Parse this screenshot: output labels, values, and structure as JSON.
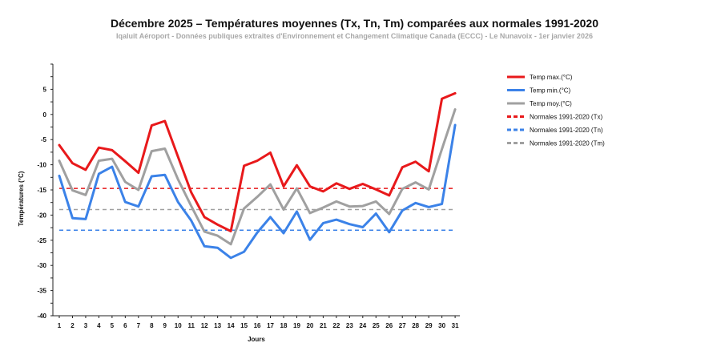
{
  "title": "Décembre 2025 – Températures moyennes (Tx, Tn, Tm) comparées aux normales 1991-2020",
  "subtitle": "Iqaluit Aéroport - Données publiques extraites d'Environnement et Changement Climatique Canada (ECCC) - Le Nunavoix - 1er janvier 2026",
  "chart_data": {
    "type": "line",
    "xlabel": "Jours",
    "ylabel": "Températures (°C)",
    "ylim": [
      -40,
      10
    ],
    "yticks": [
      5,
      0,
      -5,
      -10,
      -15,
      -20,
      -25,
      -30,
      -35,
      -40
    ],
    "x": [
      1,
      2,
      3,
      4,
      5,
      6,
      7,
      8,
      9,
      10,
      11,
      12,
      13,
      14,
      15,
      16,
      17,
      18,
      19,
      20,
      21,
      22,
      23,
      24,
      25,
      26,
      27,
      28,
      29,
      30,
      31
    ],
    "legend_position": "right",
    "series": [
      {
        "name": "Temp max.(°C)",
        "color": "#e8191b",
        "style": "solid",
        "values": [
          -6.1,
          -9.7,
          -11.0,
          -6.6,
          -7.1,
          -9.3,
          -11.6,
          -2.2,
          -1.3,
          -8.4,
          -15.5,
          -20.4,
          -21.9,
          -23.2,
          -10.2,
          -9.2,
          -7.6,
          -14.3,
          -10.1,
          -14.3,
          -15.3,
          -13.7,
          -14.8,
          -13.8,
          -14.9,
          -16.1,
          -10.5,
          -9.4,
          -11.3,
          3.1,
          4.2
        ]
      },
      {
        "name": "Temp min.(°C)",
        "color": "#3b82e8",
        "style": "solid",
        "values": [
          -12.2,
          -20.6,
          -20.8,
          -11.8,
          -10.4,
          -17.4,
          -18.3,
          -12.3,
          -12.0,
          -17.4,
          -21.1,
          -26.2,
          -26.5,
          -28.5,
          -27.3,
          -23.5,
          -20.4,
          -23.6,
          -19.3,
          -24.9,
          -21.6,
          -20.9,
          -21.8,
          -22.4,
          -19.7,
          -23.4,
          -19.1,
          -17.6,
          -18.4,
          -17.8,
          -2.1
        ]
      },
      {
        "name": "Temp moy.(°C)",
        "color": "#a0a0a0",
        "style": "solid",
        "values": [
          -9.2,
          -15.1,
          -16.0,
          -9.2,
          -8.8,
          -13.4,
          -15.0,
          -7.3,
          -6.8,
          -12.9,
          -18.2,
          -23.3,
          -24.1,
          -25.8,
          -18.7,
          -16.4,
          -13.9,
          -18.9,
          -14.7,
          -19.6,
          -18.5,
          -17.3,
          -18.3,
          -18.2,
          -17.3,
          -19.8,
          -14.8,
          -13.5,
          -14.9,
          -6.9,
          1.0
        ]
      },
      {
        "name": "Normales 1991-2020 (Tx)",
        "color": "#e8191b",
        "style": "dashed",
        "values": [
          -14.7,
          -14.7,
          -14.7,
          -14.7,
          -14.7,
          -14.7,
          -14.7,
          -14.7,
          -14.7,
          -14.7,
          -14.7,
          -14.7,
          -14.7,
          -14.7,
          -14.7,
          -14.7,
          -14.7,
          -14.7,
          -14.7,
          -14.7,
          -14.7,
          -14.7,
          -14.7,
          -14.7,
          -14.7,
          -14.7,
          -14.7,
          -14.7,
          -14.7,
          -14.7,
          -14.7
        ]
      },
      {
        "name": "Normales 1991-2020 (Tn)",
        "color": "#3b82e8",
        "style": "dashed",
        "values": [
          -23.0,
          -23.0,
          -23.0,
          -23.0,
          -23.0,
          -23.0,
          -23.0,
          -23.0,
          -23.0,
          -23.0,
          -23.0,
          -23.0,
          -23.0,
          -23.0,
          -23.0,
          -23.0,
          -23.0,
          -23.0,
          -23.0,
          -23.0,
          -23.0,
          -23.0,
          -23.0,
          -23.0,
          -23.0,
          -23.0,
          -23.0,
          -23.0,
          -23.0,
          -23.0,
          -23.0
        ]
      },
      {
        "name": "Normales 1991-2020 (Tm)",
        "color": "#a0a0a0",
        "style": "dashed",
        "values": [
          -18.9,
          -18.9,
          -18.9,
          -18.9,
          -18.9,
          -18.9,
          -18.9,
          -18.9,
          -18.9,
          -18.9,
          -18.9,
          -18.9,
          -18.9,
          -18.9,
          -18.9,
          -18.9,
          -18.9,
          -18.9,
          -18.9,
          -18.9,
          -18.9,
          -18.9,
          -18.9,
          -18.9,
          -18.9,
          -18.9,
          -18.9,
          -18.9,
          -18.9,
          -18.9,
          -18.9
        ]
      }
    ]
  }
}
